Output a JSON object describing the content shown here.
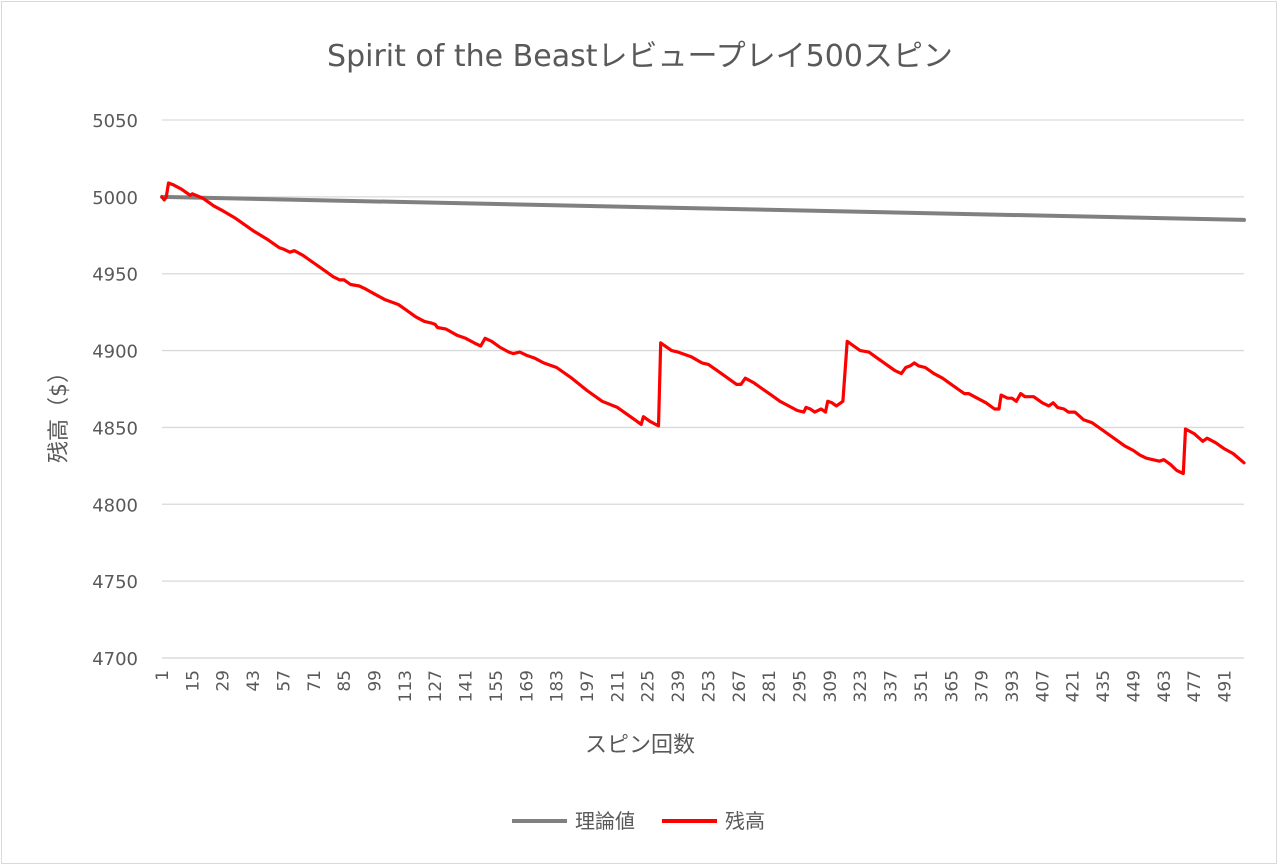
{
  "chart_data": {
    "type": "line",
    "title": "Spirit of the Beastレビュープレイ500スピン",
    "xlabel": "スピン回数",
    "ylabel": "残高（$）",
    "ylim": [
      4700,
      5050
    ],
    "yticks": [
      4700,
      4750,
      4800,
      4850,
      4900,
      4950,
      5000,
      5050
    ],
    "xlim": [
      1,
      500
    ],
    "xtick_labels": [
      "1",
      "15",
      "29",
      "43",
      "57",
      "71",
      "85",
      "99",
      "113",
      "127",
      "141",
      "155",
      "169",
      "183",
      "197",
      "211",
      "225",
      "239",
      "253",
      "267",
      "281",
      "295",
      "309",
      "323",
      "337",
      "351",
      "365",
      "379",
      "393",
      "407",
      "421",
      "435",
      "449",
      "463",
      "477",
      "491"
    ],
    "grid": true,
    "legend_position": "bottom",
    "series": [
      {
        "name": "理論値",
        "color": "#808080",
        "points": [
          [
            1,
            5000
          ],
          [
            500,
            4985
          ]
        ]
      },
      {
        "name": "残高",
        "color": "#ff0000",
        "points": [
          [
            1,
            5000
          ],
          [
            2,
            4998
          ],
          [
            3,
            5000
          ],
          [
            4,
            5009
          ],
          [
            6,
            5008
          ],
          [
            10,
            5005
          ],
          [
            14,
            5001
          ],
          [
            15,
            5002
          ],
          [
            20,
            4999
          ],
          [
            25,
            4994
          ],
          [
            29,
            4991
          ],
          [
            35,
            4986
          ],
          [
            43,
            4978
          ],
          [
            50,
            4972
          ],
          [
            55,
            4967
          ],
          [
            57,
            4966
          ],
          [
            60,
            4964
          ],
          [
            62,
            4965
          ],
          [
            66,
            4962
          ],
          [
            71,
            4957
          ],
          [
            75,
            4953
          ],
          [
            80,
            4948
          ],
          [
            83,
            4946
          ],
          [
            85,
            4946
          ],
          [
            88,
            4943
          ],
          [
            92,
            4942
          ],
          [
            95,
            4940
          ],
          [
            100,
            4936
          ],
          [
            104,
            4933
          ],
          [
            110,
            4930
          ],
          [
            113,
            4927
          ],
          [
            118,
            4922
          ],
          [
            122,
            4919
          ],
          [
            125,
            4918
          ],
          [
            127,
            4917
          ],
          [
            128,
            4915
          ],
          [
            132,
            4914
          ],
          [
            137,
            4910
          ],
          [
            141,
            4908
          ],
          [
            145,
            4905
          ],
          [
            148,
            4903
          ],
          [
            150,
            4908
          ],
          [
            153,
            4906
          ],
          [
            157,
            4902
          ],
          [
            161,
            4899
          ],
          [
            163,
            4898
          ],
          [
            166,
            4899
          ],
          [
            169,
            4897
          ],
          [
            173,
            4895
          ],
          [
            177,
            4892
          ],
          [
            183,
            4889
          ],
          [
            190,
            4882
          ],
          [
            197,
            4874
          ],
          [
            204,
            4867
          ],
          [
            211,
            4863
          ],
          [
            214,
            4860
          ],
          [
            219,
            4855
          ],
          [
            222,
            4852
          ],
          [
            223,
            4857
          ],
          [
            226,
            4854
          ],
          [
            230,
            4851
          ],
          [
            231,
            4905
          ],
          [
            236,
            4900
          ],
          [
            239,
            4899
          ],
          [
            245,
            4896
          ],
          [
            250,
            4892
          ],
          [
            253,
            4891
          ],
          [
            258,
            4886
          ],
          [
            262,
            4882
          ],
          [
            266,
            4878
          ],
          [
            268,
            4878
          ],
          [
            270,
            4882
          ],
          [
            274,
            4879
          ],
          [
            278,
            4875
          ],
          [
            282,
            4871
          ],
          [
            286,
            4867
          ],
          [
            290,
            4864
          ],
          [
            294,
            4861
          ],
          [
            297,
            4860
          ],
          [
            298,
            4863
          ],
          [
            300,
            4862
          ],
          [
            302,
            4860
          ],
          [
            305,
            4862
          ],
          [
            307,
            4860
          ],
          [
            308,
            4867
          ],
          [
            310,
            4866
          ],
          [
            312,
            4864
          ],
          [
            315,
            4867
          ],
          [
            317,
            4906
          ],
          [
            320,
            4903
          ],
          [
            323,
            4900
          ],
          [
            327,
            4899
          ],
          [
            331,
            4895
          ],
          [
            335,
            4891
          ],
          [
            339,
            4887
          ],
          [
            342,
            4885
          ],
          [
            344,
            4889
          ],
          [
            346,
            4890
          ],
          [
            348,
            4892
          ],
          [
            350,
            4890
          ],
          [
            353,
            4889
          ],
          [
            357,
            4885
          ],
          [
            361,
            4882
          ],
          [
            365,
            4878
          ],
          [
            369,
            4874
          ],
          [
            371,
            4872
          ],
          [
            373,
            4872
          ],
          [
            377,
            4869
          ],
          [
            381,
            4866
          ],
          [
            385,
            4862
          ],
          [
            387,
            4862
          ],
          [
            388,
            4871
          ],
          [
            391,
            4869
          ],
          [
            393,
            4869
          ],
          [
            395,
            4867
          ],
          [
            397,
            4872
          ],
          [
            399,
            4870
          ],
          [
            403,
            4870
          ],
          [
            407,
            4866
          ],
          [
            410,
            4864
          ],
          [
            412,
            4866
          ],
          [
            414,
            4863
          ],
          [
            417,
            4862
          ],
          [
            419,
            4860
          ],
          [
            422,
            4860
          ],
          [
            426,
            4855
          ],
          [
            430,
            4853
          ],
          [
            435,
            4848
          ],
          [
            440,
            4843
          ],
          [
            445,
            4838
          ],
          [
            449,
            4835
          ],
          [
            452,
            4832
          ],
          [
            455,
            4830
          ],
          [
            458,
            4829
          ],
          [
            461,
            4828
          ],
          [
            463,
            4829
          ],
          [
            466,
            4826
          ],
          [
            469,
            4822
          ],
          [
            472,
            4820
          ],
          [
            473,
            4849
          ],
          [
            477,
            4846
          ],
          [
            481,
            4841
          ],
          [
            483,
            4843
          ],
          [
            487,
            4840
          ],
          [
            491,
            4836
          ],
          [
            495,
            4833
          ],
          [
            500,
            4827
          ]
        ]
      }
    ]
  }
}
